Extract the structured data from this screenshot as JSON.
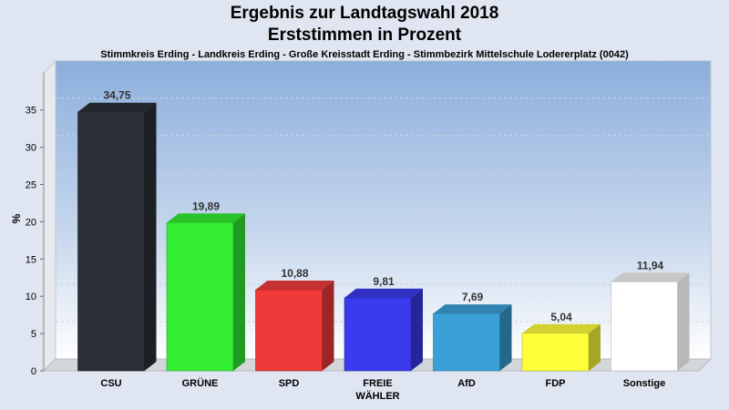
{
  "title_line1": "Ergebnis zur Landtagswahl 2018",
  "title_line2": "Erststimmen in Prozent",
  "subtitle": "Stimmkreis Erding - Landkreis Erding - Große Kreisstadt Erding - Stimmbezirk Mittelschule Lodererplatz (0042)",
  "chart_data": {
    "type": "bar",
    "title": "Ergebnis zur Landtagswahl 2018 Erststimmen in Prozent",
    "xlabel": "",
    "ylabel": "%",
    "ylim": [
      0,
      40
    ],
    "yticks": [
      "0",
      "5",
      "10",
      "15",
      "20",
      "25",
      "30",
      "35"
    ],
    "categories": [
      [
        "CSU"
      ],
      [
        "GRÜNE"
      ],
      [
        "SPD"
      ],
      [
        "FREIE",
        "WÄHLER"
      ],
      [
        "AfD"
      ],
      [
        "FDP"
      ],
      [
        "Sonstige"
      ]
    ],
    "values": [
      34.75,
      19.89,
      10.88,
      9.81,
      7.69,
      5.04,
      11.94
    ],
    "value_labels": [
      "34,75",
      "19,89",
      "10,88",
      "9,81",
      "7,69",
      "5,04",
      "11,94"
    ],
    "colors": [
      "#2b2f38",
      "#33ee33",
      "#f03a3a",
      "#3a3aee",
      "#3aa0d8",
      "#ffff3a",
      "#ffffff"
    ],
    "grid": true
  }
}
